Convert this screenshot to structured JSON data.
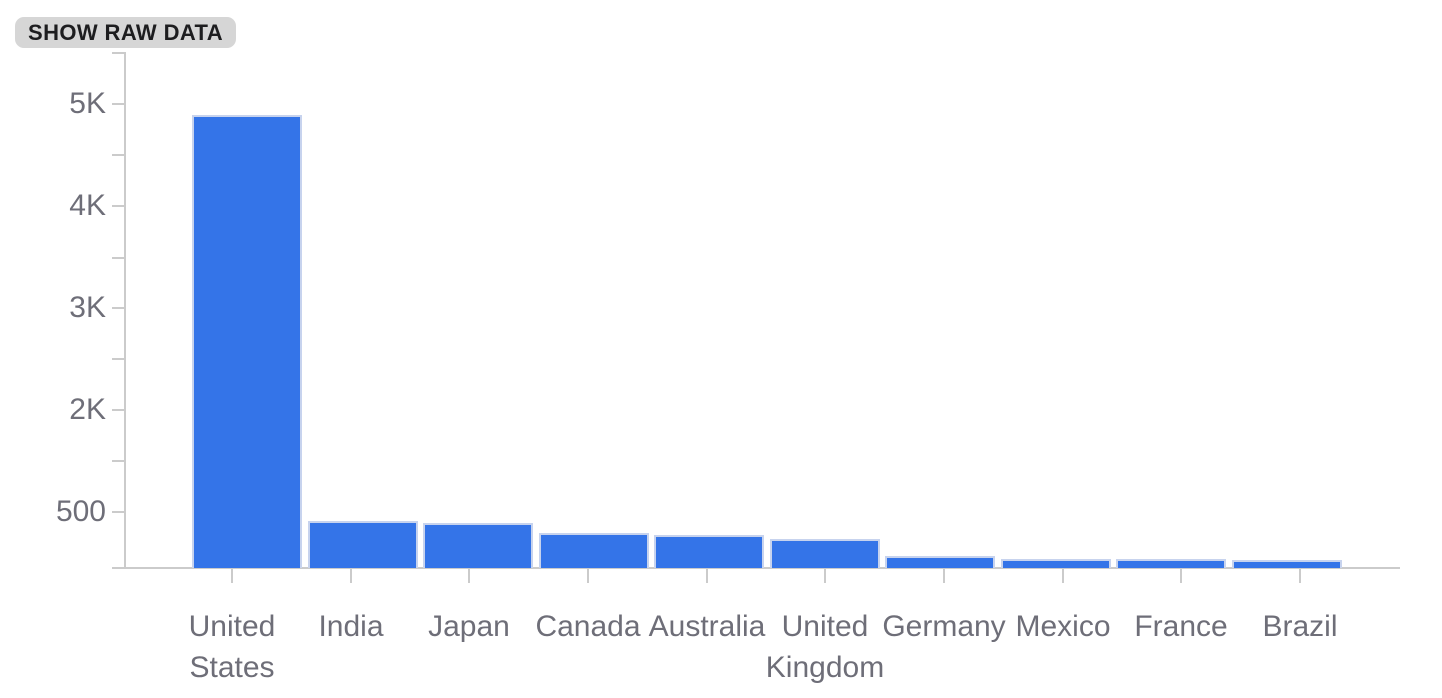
{
  "toolbar": {
    "show_raw_data_label": "SHOW RAW DATA"
  },
  "chart_data": {
    "type": "bar",
    "title": "",
    "categories": [
      "United States",
      "India",
      "Japan",
      "Canada",
      "Australia",
      "United Kingdom",
      "Germany",
      "Mexico",
      "France",
      "Brazil"
    ],
    "category_display": [
      "United\nStates",
      "India",
      "Japan",
      "Canada",
      "Australia",
      "United\nKingdom",
      "Germany",
      "Mexico",
      "France",
      "Brazil"
    ],
    "values": [
      4890,
      420,
      400,
      310,
      295,
      260,
      105,
      82,
      80,
      72
    ],
    "series_name": "",
    "xlabel": "",
    "ylabel": "",
    "y_axis": {
      "tick_labels": [
        "5K",
        "4K",
        "3K",
        "2K",
        "500"
      ],
      "range": [
        0,
        5500
      ],
      "scale": "piecewise",
      "scale_breakpoints": [
        0,
        500,
        2000,
        5000
      ],
      "grid": "off"
    },
    "legend": "none",
    "colors": {
      "bar_fill": "#3474E8",
      "bar_stroke": "#C7D3EE",
      "axis": "#CBCBCB",
      "label": "#6E6E78",
      "button_bg": "#D6D6D6",
      "button_text": "#1D1D1F"
    }
  }
}
